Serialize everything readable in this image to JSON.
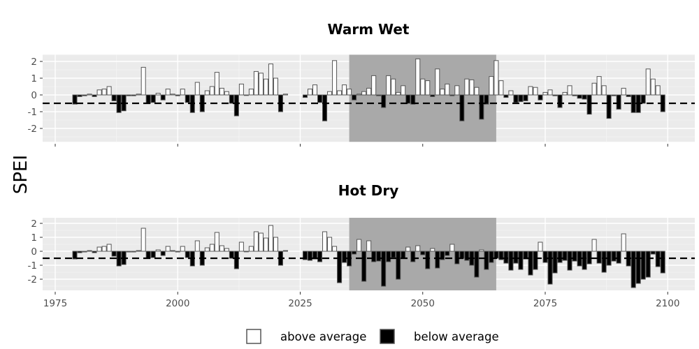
{
  "chart_data": {
    "type": "bar",
    "ylabel": "SPEI",
    "threshold": -0.5,
    "highlight": {
      "start": 2035,
      "end": 2065
    },
    "xlim": [
      1975,
      2100
    ],
    "x_ticks": [
      1975,
      2000,
      2025,
      2050,
      2075,
      2100
    ],
    "y_ticks": [
      2,
      1,
      0,
      -1,
      -2
    ],
    "ylim": [
      -2.8,
      2.4
    ],
    "colors": {
      "above": "#ffffff",
      "below": "#000000",
      "panel": "#ebebeb",
      "highlight": "#a9a9a9",
      "bar_edge": "#555555"
    },
    "legend": [
      {
        "key": "above",
        "label": "above average"
      },
      {
        "key": "below",
        "label": "below average"
      }
    ],
    "panels": [
      {
        "title": "Warm Wet",
        "series": [
          {
            "years": [
              1979,
              1980,
              1981,
              1982,
              1983,
              1984,
              1985,
              1986,
              1987,
              1988,
              1989,
              1990,
              1991,
              1992,
              1993,
              1994,
              1995,
              1996,
              1997,
              1998,
              1999,
              2000,
              2001,
              2002,
              2003,
              2004,
              2005,
              2006,
              2007,
              2008,
              2009,
              2010,
              2011,
              2012,
              2013,
              2014,
              2015,
              2016,
              2017,
              2018,
              2019,
              2020,
              2021,
              2022
            ],
            "values": [
              -0.55,
              -0.1,
              -0.05,
              0.05,
              -0.1,
              0.3,
              0.35,
              0.5,
              -0.35,
              -1.05,
              -0.95,
              -0.05,
              -0.05,
              0.05,
              1.65,
              -0.5,
              -0.45,
              0.1,
              -0.3,
              0.35,
              0.05,
              -0.05,
              0.35,
              -0.45,
              -1.05,
              0.75,
              -1.0,
              0.25,
              0.5,
              1.35,
              0.4,
              0.2,
              -0.5,
              -1.25,
              0.65,
              0.0,
              0.35,
              1.4,
              1.3,
              0.95,
              1.85,
              1.0,
              -1.0,
              0.05
            ]
          },
          {
            "years": [
              2026,
              2027,
              2028,
              2029,
              2030,
              2031,
              2032,
              2033,
              2034,
              2035,
              2036,
              2037,
              2038,
              2039,
              2040,
              2041,
              2042,
              2043,
              2044,
              2045,
              2046,
              2047,
              2048,
              2049,
              2050,
              2051,
              2052,
              2053,
              2054,
              2055,
              2056,
              2057,
              2058,
              2059,
              2060,
              2061,
              2062,
              2063,
              2064,
              2065,
              2066,
              2067,
              2068,
              2069,
              2070,
              2071,
              2072,
              2073,
              2074,
              2075,
              2076,
              2077,
              2078,
              2079,
              2080,
              2081,
              2082,
              2083,
              2084,
              2085,
              2086,
              2087,
              2088,
              2089,
              2090,
              2091,
              2092,
              2093,
              2094,
              2095,
              2096,
              2097,
              2098,
              2099
            ],
            "values": [
              -0.15,
              0.35,
              0.6,
              -0.45,
              -1.55,
              0.2,
              2.05,
              0.25,
              0.6,
              0.35,
              -0.3,
              0.05,
              0.2,
              0.4,
              1.15,
              -0.05,
              -0.75,
              1.15,
              0.95,
              0.15,
              0.55,
              -0.5,
              -0.55,
              2.15,
              0.95,
              0.85,
              -0.1,
              1.55,
              0.35,
              0.65,
              -0.05,
              0.55,
              -1.55,
              0.95,
              0.9,
              0.45,
              -1.45,
              -0.55,
              1.1,
              2.05,
              0.85,
              -0.15,
              0.25,
              -0.45,
              -0.4,
              -0.35,
              0.5,
              0.45,
              -0.3,
              0.15,
              0.3,
              -0.05,
              -0.75,
              0.15,
              0.55,
              -0.05,
              -0.2,
              -0.25,
              -1.15,
              0.7,
              1.1,
              0.55,
              -1.4,
              -0.05,
              -0.85,
              0.4,
              -0.1,
              -1.05,
              -1.05,
              -0.5,
              1.55,
              0.95,
              0.55,
              -1.0
            ]
          }
        ]
      },
      {
        "title": "Hot Dry",
        "series": [
          {
            "years": [
              1979,
              1980,
              1981,
              1982,
              1983,
              1984,
              1985,
              1986,
              1987,
              1988,
              1989,
              1990,
              1991,
              1992,
              1993,
              1994,
              1995,
              1996,
              1997,
              1998,
              1999,
              2000,
              2001,
              2002,
              2003,
              2004,
              2005,
              2006,
              2007,
              2008,
              2009,
              2010,
              2011,
              2012,
              2013,
              2014,
              2015,
              2016,
              2017,
              2018,
              2019,
              2020,
              2021,
              2022
            ],
            "values": [
              -0.55,
              -0.1,
              -0.05,
              0.05,
              -0.1,
              0.3,
              0.35,
              0.5,
              -0.35,
              -1.05,
              -0.95,
              -0.05,
              -0.05,
              0.05,
              1.65,
              -0.5,
              -0.45,
              0.1,
              -0.3,
              0.35,
              0.05,
              -0.05,
              0.35,
              -0.45,
              -1.05,
              0.75,
              -1.0,
              0.25,
              0.5,
              1.35,
              0.4,
              0.2,
              -0.5,
              -1.25,
              0.65,
              0.0,
              0.35,
              1.4,
              1.3,
              0.95,
              1.85,
              1.0,
              -1.0,
              0.05
            ]
          },
          {
            "years": [
              2026,
              2027,
              2028,
              2029,
              2030,
              2031,
              2032,
              2033,
              2034,
              2035,
              2036,
              2037,
              2038,
              2039,
              2040,
              2041,
              2042,
              2043,
              2044,
              2045,
              2046,
              2047,
              2048,
              2049,
              2050,
              2051,
              2052,
              2053,
              2054,
              2055,
              2056,
              2057,
              2058,
              2059,
              2060,
              2061,
              2062,
              2063,
              2064,
              2065,
              2066,
              2067,
              2068,
              2069,
              2070,
              2071,
              2072,
              2073,
              2074,
              2075,
              2076,
              2077,
              2078,
              2079,
              2080,
              2081,
              2082,
              2083,
              2084,
              2085,
              2086,
              2087,
              2088,
              2089,
              2090,
              2091,
              2092,
              2093,
              2094,
              2095,
              2096,
              2097,
              2098,
              2099
            ],
            "values": [
              -0.6,
              -0.65,
              -0.55,
              -0.75,
              1.4,
              1.0,
              0.35,
              -2.25,
              -0.8,
              -1.05,
              -0.2,
              0.85,
              -2.15,
              0.75,
              -0.75,
              -0.7,
              -2.5,
              -0.75,
              -0.45,
              -2.0,
              -0.5,
              0.3,
              -0.75,
              0.4,
              -0.25,
              -1.25,
              0.2,
              -1.2,
              -0.6,
              -0.3,
              0.5,
              -0.9,
              -0.5,
              -0.65,
              -1.0,
              -1.85,
              0.1,
              -1.3,
              -0.8,
              -0.5,
              -0.6,
              -0.85,
              -1.35,
              -0.85,
              -1.3,
              -0.55,
              -1.7,
              -1.3,
              0.65,
              -0.8,
              -2.35,
              -1.55,
              -0.8,
              -0.65,
              -1.35,
              -0.7,
              -1.05,
              -1.3,
              -0.9,
              0.85,
              -0.85,
              -1.5,
              -1.0,
              -0.7,
              -0.85,
              1.25,
              -1.05,
              -2.6,
              -2.3,
              -2.0,
              -1.85,
              -0.2,
              -1.1,
              -1.55
            ]
          }
        ]
      }
    ]
  }
}
